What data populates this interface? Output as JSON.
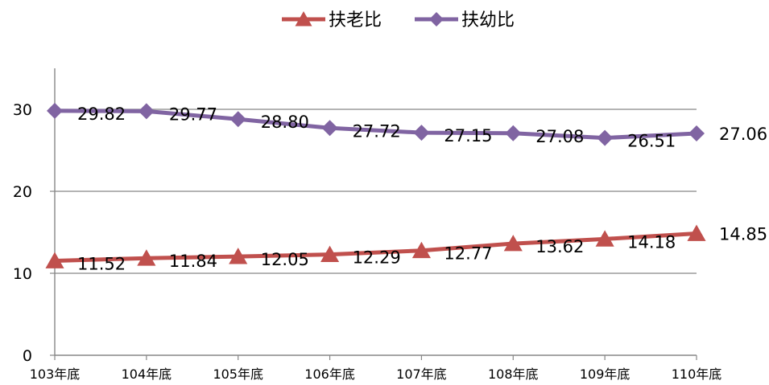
{
  "chart_data": {
    "type": "line",
    "categories": [
      "103年底",
      "104年底",
      "105年底",
      "106年底",
      "107年底",
      "108年底",
      "109年底",
      "110年底"
    ],
    "series": [
      {
        "name": "扶老比",
        "values": [
          11.52,
          11.84,
          12.05,
          12.29,
          12.77,
          13.62,
          14.18,
          14.85
        ],
        "color": "#c0504d",
        "marker": "triangle"
      },
      {
        "name": "扶幼比",
        "values": [
          29.82,
          29.77,
          28.8,
          27.72,
          27.15,
          27.08,
          26.51,
          27.06
        ],
        "color": "#8064a2",
        "marker": "diamond"
      }
    ],
    "ylim": [
      0,
      35
    ],
    "yticks": [
      0,
      10,
      20,
      30
    ],
    "grid": true,
    "legend_position": "top"
  }
}
